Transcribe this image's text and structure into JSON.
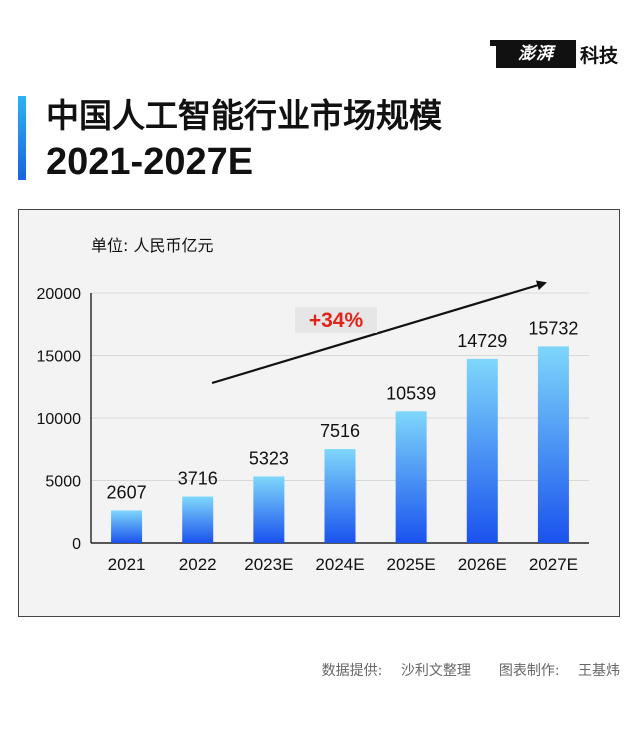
{
  "brand": {
    "mark": "澎湃",
    "suffix": "科技"
  },
  "title": "中国人工智能行业市场规模",
  "subtitle": "2021-2027E",
  "unit_label": "单位: 人民币亿元",
  "growth_label": "+34%",
  "footer": {
    "source_label": "数据提供:",
    "source_value": "沙利文整理",
    "maker_label": "图表制作:",
    "maker_value": "王基炜"
  },
  "colors": {
    "bar_top": "#7fd7fb",
    "bar_bottom": "#1a52ee",
    "growth_text": "#e2231a",
    "growth_bg": "#e6e6e6"
  },
  "chart_data": {
    "type": "bar",
    "categories": [
      "2021",
      "2022",
      "2023E",
      "2024E",
      "2025E",
      "2026E",
      "2027E"
    ],
    "values": [
      2607,
      3716,
      5323,
      7516,
      10539,
      14729,
      15732
    ],
    "ylim": [
      0,
      20000
    ],
    "yticks": [
      0,
      5000,
      10000,
      15000,
      20000
    ],
    "grid": true,
    "data_labels": true
  }
}
